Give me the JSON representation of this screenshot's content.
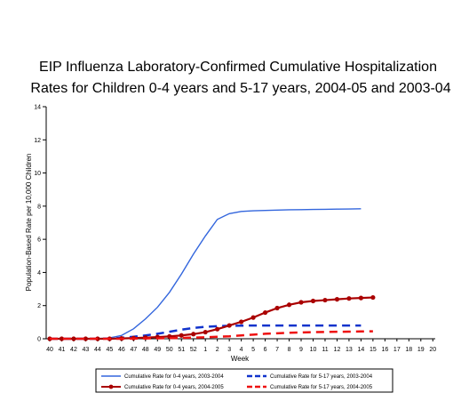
{
  "chart_data": {
    "type": "line",
    "title_lines": [
      "EIP Influenza Laboratory-Confirmed Cumulative Hospitalization",
      "Rates for Children 0-4 years and 5-17 years, 2004-05 and 2003-04"
    ],
    "xlabel": "Week",
    "ylabel": "Population-Based Rate per 10,000 Children",
    "ylim": [
      0,
      14
    ],
    "yticks": [
      0,
      2,
      4,
      6,
      8,
      10,
      12,
      14
    ],
    "categories": [
      "40",
      "41",
      "42",
      "43",
      "44",
      "45",
      "46",
      "47",
      "48",
      "49",
      "50",
      "51",
      "52",
      "1",
      "2",
      "3",
      "4",
      "5",
      "6",
      "7",
      "8",
      "9",
      "10",
      "11",
      "12",
      "13",
      "14",
      "15",
      "16",
      "17",
      "18",
      "19",
      "20"
    ],
    "grid": false,
    "legend_position": "bottom",
    "series": [
      {
        "name": "Cumulative Rate for 0-4 years, 2003-2004",
        "color": "#3366dd",
        "style": "solid",
        "markers": false,
        "values": [
          0.0,
          0.0,
          0.0,
          0.0,
          0.01,
          0.05,
          0.2,
          0.6,
          1.2,
          1.9,
          2.8,
          3.9,
          5.1,
          6.2,
          7.2,
          7.55,
          7.68,
          7.72,
          7.74,
          7.76,
          7.78,
          7.79,
          7.8,
          7.81,
          7.82,
          7.83,
          7.84,
          null,
          null,
          null,
          null,
          null,
          null
        ]
      },
      {
        "name": "Cumulative Rate for 5-17 years, 2003-2004",
        "color": "#1133cc",
        "style": "dashed",
        "markers": false,
        "values": [
          0.0,
          0.0,
          0.0,
          0.0,
          0.0,
          0.02,
          0.06,
          0.12,
          0.2,
          0.3,
          0.42,
          0.55,
          0.65,
          0.72,
          0.76,
          0.78,
          0.79,
          0.8,
          0.8,
          0.8,
          0.8,
          0.8,
          0.8,
          0.8,
          0.8,
          0.8,
          0.8,
          null,
          null,
          null,
          null,
          null,
          null
        ]
      },
      {
        "name": "Cumulative Rate for 0-4 years, 2004-2005",
        "color": "#aa0000",
        "style": "solid",
        "markers": true,
        "values": [
          0.0,
          0.0,
          0.0,
          0.0,
          0.0,
          0.0,
          0.02,
          0.04,
          0.07,
          0.1,
          0.14,
          0.2,
          0.28,
          0.4,
          0.58,
          0.8,
          1.02,
          1.28,
          1.58,
          1.85,
          2.05,
          2.2,
          2.28,
          2.33,
          2.38,
          2.43,
          2.46,
          2.49,
          null,
          null,
          null,
          null,
          null
        ]
      },
      {
        "name": "Cumulative Rate for 5-17 years, 2004-2005",
        "color": "#ee1111",
        "style": "dashed",
        "markers": false,
        "values": [
          0.0,
          0.0,
          0.0,
          0.0,
          0.0,
          0.0,
          0.0,
          0.01,
          0.02,
          0.03,
          0.04,
          0.05,
          0.07,
          0.09,
          0.12,
          0.15,
          0.2,
          0.25,
          0.3,
          0.33,
          0.36,
          0.38,
          0.4,
          0.41,
          0.42,
          0.43,
          0.44,
          0.45,
          null,
          null,
          null,
          null,
          null
        ]
      }
    ]
  }
}
